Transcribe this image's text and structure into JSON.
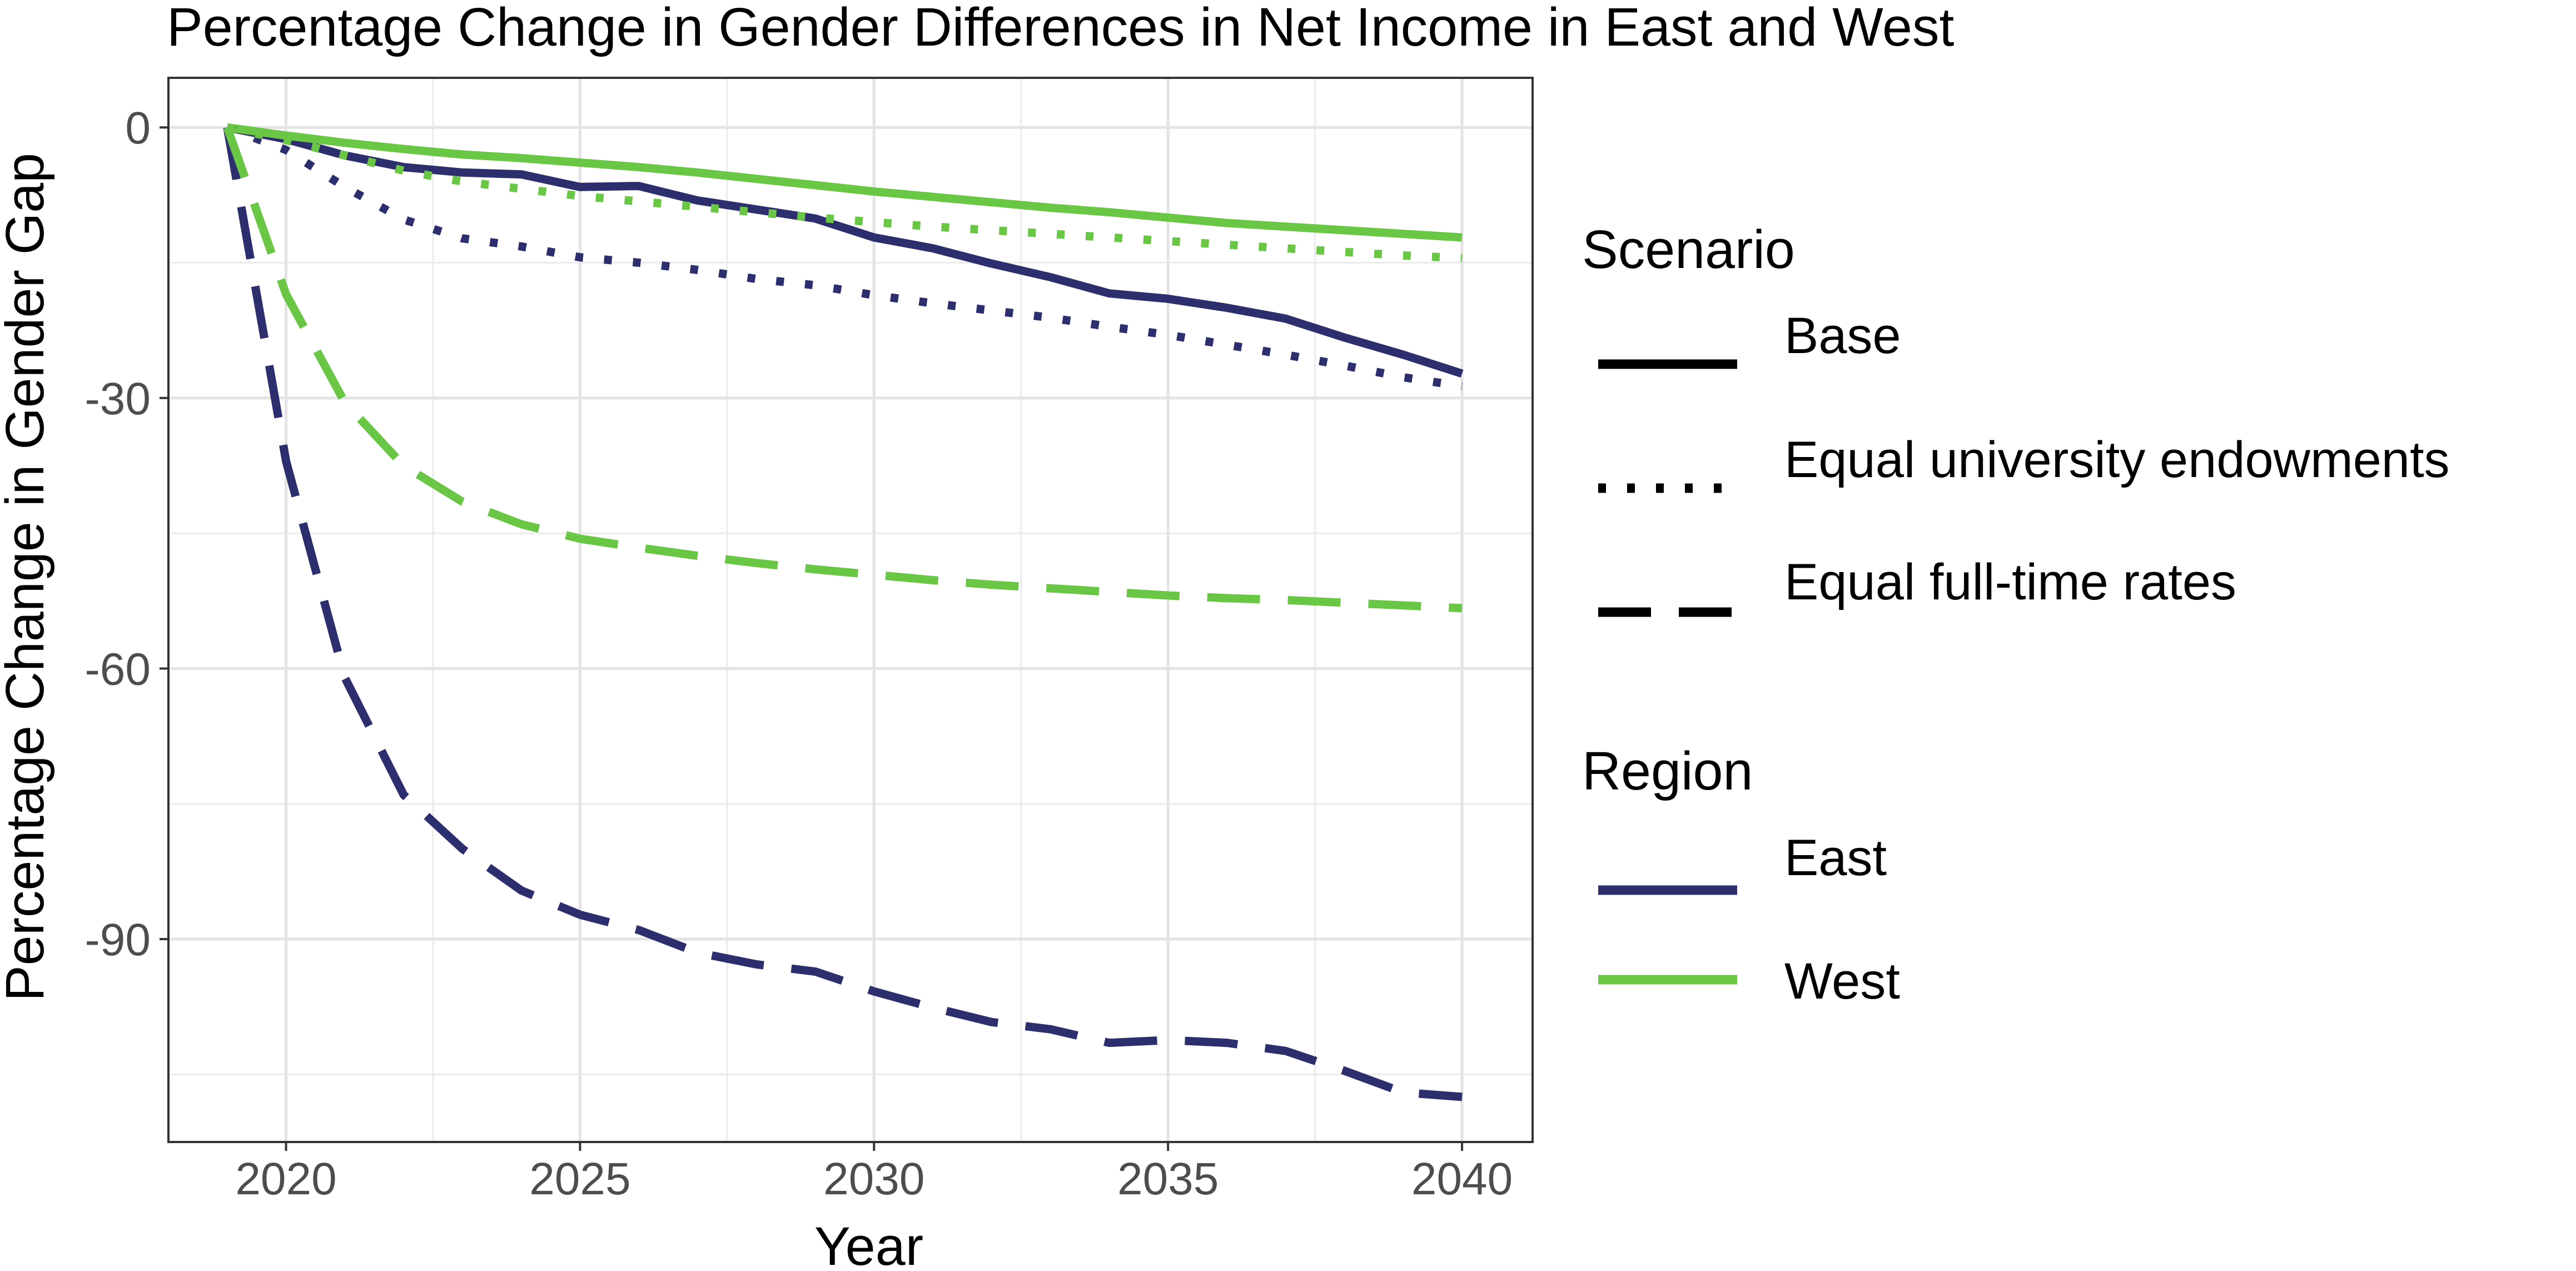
{
  "chart_data": {
    "type": "line",
    "title": "Percentage Change in Gender Differences in Net Income in East and West",
    "xlabel": "Year",
    "ylabel": "Percentage Change in Gender Gap",
    "xlim": [
      2018,
      2041.2
    ],
    "ylim": [
      -112.5,
      5.5
    ],
    "x_ticks": [
      2020,
      2025,
      2030,
      2035,
      2040
    ],
    "y_ticks": [
      0,
      -30,
      -60,
      -90
    ],
    "y_minor_ticks": [
      -15,
      -45,
      -75,
      -105
    ],
    "x_minor_ticks": [
      2022.5,
      2027.5,
      2032.5,
      2037.5
    ],
    "grid": true,
    "legend_position": "right",
    "legend": {
      "scenario_title": "Scenario",
      "scenario_items": [
        {
          "label": "Base",
          "linetype": "solid"
        },
        {
          "label": "Equal university endowments",
          "linetype": "dotted"
        },
        {
          "label": "Equal full-time rates",
          "linetype": "dashed"
        }
      ],
      "region_title": "Region",
      "region_items": [
        {
          "label": "East",
          "color": "#2d2e6e"
        },
        {
          "label": "West",
          "color": "#6ac745"
        }
      ]
    },
    "x": [
      2019,
      2020,
      2021,
      2022,
      2023,
      2024,
      2025,
      2026,
      2027,
      2028,
      2029,
      2030,
      2031,
      2032,
      2033,
      2034,
      2035,
      2036,
      2037,
      2038,
      2039,
      2040
    ],
    "series": [
      {
        "region": "East",
        "scenario": "Base",
        "color": "#2d2e6e",
        "linetype": "solid",
        "values": [
          0,
          -1.3,
          -3.1,
          -4.4,
          -5.0,
          -5.2,
          -6.6,
          -6.5,
          -8.1,
          -9.1,
          -10.1,
          -12.2,
          -13.4,
          -15.1,
          -16.6,
          -18.4,
          -19.0,
          -20.0,
          -21.2,
          -23.3,
          -25.2,
          -27.3
        ]
      },
      {
        "region": "West",
        "scenario": "Base",
        "color": "#6ac745",
        "linetype": "solid",
        "values": [
          0,
          -0.9,
          -1.7,
          -2.4,
          -3.0,
          -3.4,
          -3.9,
          -4.4,
          -5.0,
          -5.7,
          -6.4,
          -7.1,
          -7.7,
          -8.3,
          -8.9,
          -9.4,
          -10.0,
          -10.6,
          -11.0,
          -11.4,
          -11.8,
          -12.2
        ]
      },
      {
        "region": "East",
        "scenario": "Equal university endowments",
        "color": "#2d2e6e",
        "linetype": "dotted",
        "values": [
          0,
          -2.5,
          -6.6,
          -10.2,
          -12.3,
          -13.2,
          -14.4,
          -15.0,
          -15.8,
          -16.8,
          -17.5,
          -18.6,
          -19.5,
          -20.3,
          -21.1,
          -22.1,
          -23.0,
          -24.1,
          -25.2,
          -26.4,
          -27.7,
          -28.7
        ]
      },
      {
        "region": "West",
        "scenario": "Equal university endowments",
        "color": "#6ac745",
        "linetype": "dotted",
        "values": [
          0,
          -1.4,
          -3.1,
          -4.8,
          -6.0,
          -6.8,
          -7.6,
          -8.2,
          -8.8,
          -9.4,
          -10.0,
          -10.5,
          -11.0,
          -11.4,
          -11.8,
          -12.2,
          -12.6,
          -13.0,
          -13.4,
          -13.8,
          -14.2,
          -14.5
        ]
      },
      {
        "region": "East",
        "scenario": "Equal full-time rates",
        "color": "#2d2e6e",
        "linetype": "dashed",
        "values": [
          0,
          -37.0,
          -61.0,
          -74.0,
          -80.0,
          -84.6,
          -87.3,
          -89.0,
          -91.5,
          -92.8,
          -93.6,
          -95.8,
          -97.6,
          -99.2,
          -100.0,
          -101.5,
          -101.2,
          -101.5,
          -102.4,
          -104.6,
          -107.0,
          -107.5
        ]
      },
      {
        "region": "West",
        "scenario": "Equal full-time rates",
        "color": "#6ac745",
        "linetype": "dashed",
        "values": [
          0,
          -18.5,
          -30.5,
          -37.5,
          -41.5,
          -44.0,
          -45.6,
          -46.6,
          -47.5,
          -48.3,
          -49.0,
          -49.6,
          -50.2,
          -50.7,
          -51.1,
          -51.5,
          -51.9,
          -52.2,
          -52.4,
          -52.7,
          -53.0,
          -53.3
        ]
      }
    ]
  }
}
